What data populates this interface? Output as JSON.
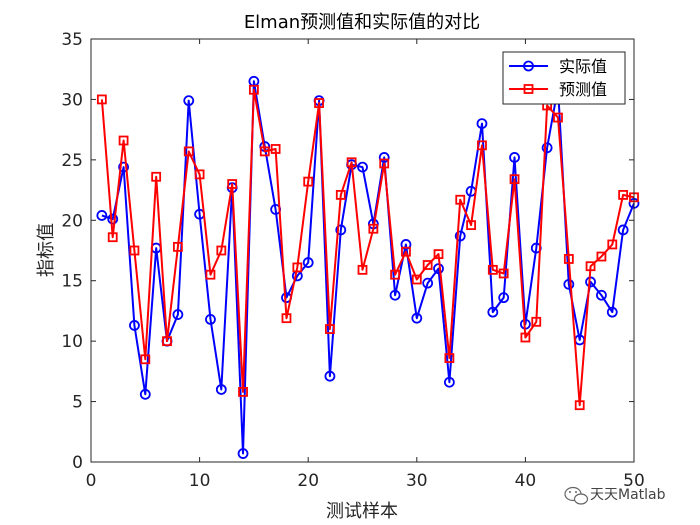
{
  "chart_data": {
    "type": "line",
    "title": "Elman预测值和实际值的对比",
    "xlabel": "测试样本",
    "ylabel": "指标值",
    "xlim": [
      0,
      50
    ],
    "ylim": [
      0,
      35
    ],
    "xticks": [
      0,
      10,
      20,
      30,
      40,
      50
    ],
    "yticks": [
      0,
      5,
      10,
      15,
      20,
      25,
      30,
      35
    ],
    "grid": false,
    "legend_position": "top-right",
    "x": [
      1,
      2,
      3,
      4,
      5,
      6,
      7,
      8,
      9,
      10,
      11,
      12,
      13,
      14,
      15,
      16,
      17,
      18,
      19,
      20,
      21,
      22,
      23,
      24,
      25,
      26,
      27,
      28,
      29,
      30,
      31,
      32,
      33,
      34,
      35,
      36,
      37,
      38,
      39,
      40,
      41,
      42,
      43,
      44,
      45,
      46,
      47,
      48,
      49,
      50
    ],
    "series": [
      {
        "name": "实际值",
        "color": "#0000ff",
        "marker": "circle",
        "values": [
          20.4,
          20.1,
          24.4,
          11.3,
          5.6,
          17.7,
          10.0,
          12.2,
          29.9,
          20.5,
          11.8,
          6.0,
          22.7,
          0.7,
          31.5,
          26.1,
          20.9,
          13.6,
          15.4,
          16.5,
          29.9,
          7.1,
          19.2,
          24.6,
          24.4,
          19.7,
          25.2,
          13.8,
          18.0,
          11.9,
          14.8,
          16.0,
          6.6,
          18.7,
          22.4,
          28.0,
          12.4,
          13.6,
          25.2,
          11.4,
          17.7,
          26.0,
          31.0,
          14.7,
          10.1,
          14.9,
          13.8,
          12.4,
          19.2,
          21.4
        ]
      },
      {
        "name": "预测值",
        "color": "#ff0000",
        "marker": "square",
        "values": [
          30.0,
          18.6,
          26.6,
          17.5,
          8.5,
          23.6,
          10.0,
          17.8,
          25.7,
          23.8,
          15.5,
          17.5,
          23.0,
          5.8,
          30.8,
          25.7,
          25.9,
          11.9,
          16.1,
          23.2,
          29.7,
          11.0,
          22.1,
          24.8,
          15.9,
          19.3,
          24.7,
          15.5,
          17.4,
          15.1,
          16.3,
          17.2,
          8.6,
          21.7,
          19.6,
          26.2,
          15.9,
          15.6,
          23.4,
          10.3,
          11.6,
          29.5,
          28.5,
          16.8,
          4.7,
          16.2,
          17.0,
          18.0,
          22.1,
          21.9
        ]
      }
    ]
  },
  "watermark": {
    "text": "天天Matlab",
    "icon": "wechat-icon"
  }
}
